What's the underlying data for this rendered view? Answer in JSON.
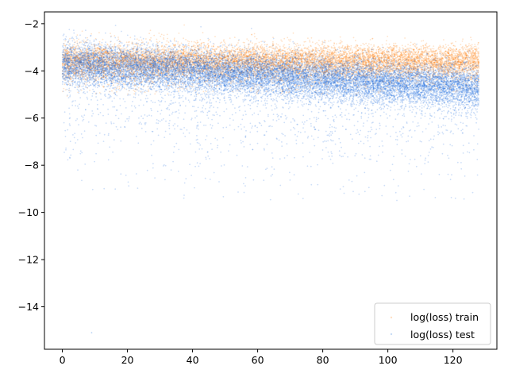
{
  "chart_data": {
    "type": "scatter",
    "title": "",
    "xlabel": "",
    "ylabel": "",
    "xlim": [
      -5.5,
      133.5
    ],
    "ylim": [
      -15.8,
      -1.5
    ],
    "x_ticks": [
      0,
      20,
      40,
      60,
      80,
      100,
      120
    ],
    "y_ticks": [
      -14,
      -12,
      -10,
      -8,
      -6,
      -4,
      -2
    ],
    "x_tick_labels": [
      "0",
      "20",
      "40",
      "60",
      "80",
      "100",
      "120"
    ],
    "y_tick_labels": [
      "−14",
      "−12",
      "−10",
      "−8",
      "−6",
      "−4",
      "−2"
    ],
    "grid": false,
    "legend_placement": "lower-right",
    "series": [
      {
        "name": "log(loss) train",
        "color": "#ff7f0e",
        "x_range": [
          0,
          128
        ],
        "y_center_start": -3.6,
        "y_center_end": -3.6,
        "y_spread": 0.35,
        "outlier_low": -5.0,
        "points": 11000
      },
      {
        "name": "log(loss) test",
        "color": "#1f6fdd",
        "x_range": [
          0,
          128
        ],
        "y_center_start": -3.7,
        "y_center_end": -4.7,
        "y_spread": 0.45,
        "outlier_low": -9.5,
        "points": 16000,
        "extreme_outlier": {
          "x": 9,
          "y": -15.1
        }
      }
    ]
  }
}
